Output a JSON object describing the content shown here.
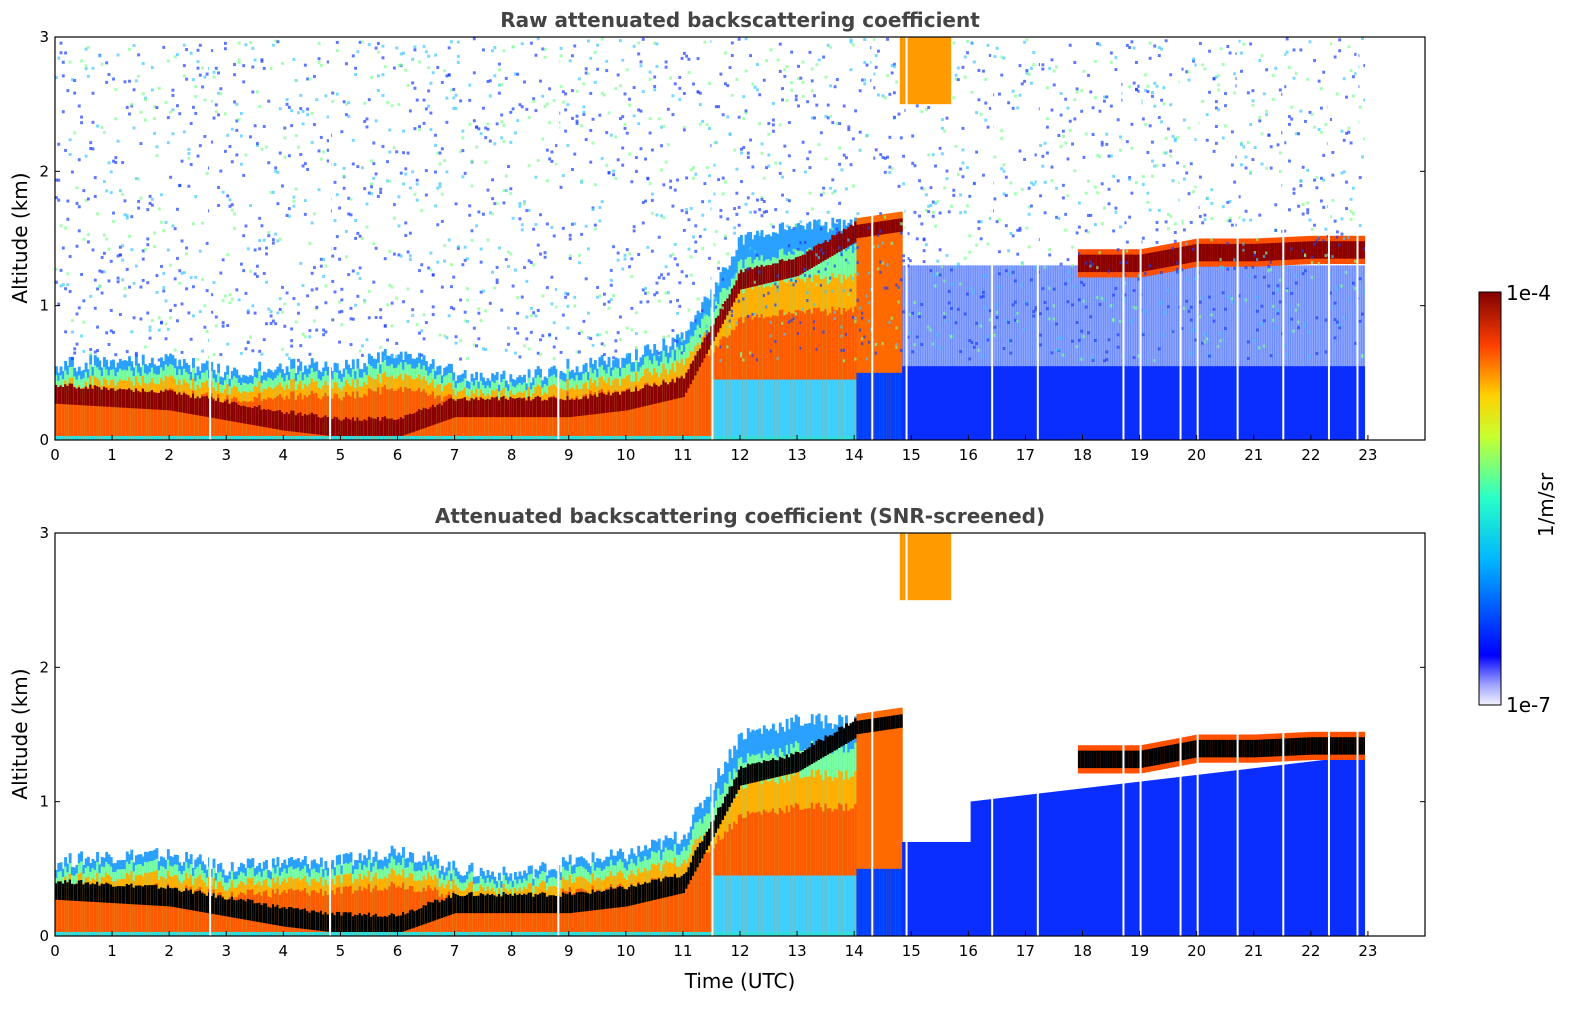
{
  "chart_data": [
    {
      "type": "heatmap",
      "title": "Raw attenuated backscattering coefficient",
      "xlabel": "",
      "ylabel": "Altitude (km)",
      "xlim": [
        0,
        24
      ],
      "ylim": [
        0,
        3
      ],
      "xticks": [
        "0",
        "1",
        "2",
        "3",
        "4",
        "5",
        "6",
        "7",
        "8",
        "9",
        "10",
        "11",
        "12",
        "13",
        "14",
        "15",
        "16",
        "17",
        "18",
        "19",
        "20",
        "21",
        "22",
        "23"
      ],
      "yticks": [
        "0",
        "1",
        "2",
        "3"
      ],
      "colorscale": "jet",
      "log_scale": true,
      "screened": false,
      "layers": {
        "surface_aerosol_top_km": [
          [
            0,
            0.55
          ],
          [
            1,
            0.6
          ],
          [
            2,
            0.6
          ],
          [
            3,
            0.5
          ],
          [
            4,
            0.55
          ],
          [
            5,
            0.55
          ],
          [
            6,
            0.65
          ],
          [
            7,
            0.5
          ],
          [
            8,
            0.45
          ],
          [
            9,
            0.55
          ],
          [
            10,
            0.6
          ],
          [
            11,
            0.75
          ],
          [
            12,
            1.5
          ],
          [
            13,
            1.6
          ],
          [
            14,
            1.6
          ],
          [
            14.8,
            1.65
          ]
        ],
        "strong_layer_km": [
          [
            0,
            0.35
          ],
          [
            2,
            0.3
          ],
          [
            4,
            0.15
          ],
          [
            5,
            0.1
          ],
          [
            6,
            0.1
          ],
          [
            7,
            0.25
          ],
          [
            8,
            0.25
          ],
          [
            9,
            0.25
          ],
          [
            10,
            0.3
          ],
          [
            11,
            0.4
          ],
          [
            12,
            1.2
          ],
          [
            13,
            1.3
          ],
          [
            14,
            1.55
          ],
          [
            14.8,
            1.6
          ],
          [
            17.9,
            1.3
          ],
          [
            19,
            1.3
          ],
          [
            20,
            1.38
          ],
          [
            21,
            1.38
          ],
          [
            22,
            1.4
          ],
          [
            23,
            1.4
          ]
        ],
        "elevated_cloud": {
          "t_start": 14.8,
          "t_end": 15.7,
          "base_km": 2.5,
          "top_km": 3
        }
      }
    },
    {
      "type": "heatmap",
      "title": "Attenuated backscattering coefficient (SNR-screened)",
      "xlabel": "Time (UTC)",
      "ylabel": "Altitude (km)",
      "xlim": [
        0,
        24
      ],
      "ylim": [
        0,
        3
      ],
      "xticks": [
        "0",
        "1",
        "2",
        "3",
        "4",
        "5",
        "6",
        "7",
        "8",
        "9",
        "10",
        "11",
        "12",
        "13",
        "14",
        "15",
        "16",
        "17",
        "18",
        "19",
        "20",
        "21",
        "22",
        "23"
      ],
      "yticks": [
        "0",
        "1",
        "2",
        "3"
      ],
      "colorscale": "jet",
      "log_scale": true,
      "screened": true
    }
  ],
  "colorbar": {
    "label": "1/m/sr",
    "max_label": "1e-4",
    "min_label": "1e-7",
    "range": [
      1e-07,
      0.0001
    ]
  },
  "colors": {
    "missing_data_gaps_utc": [
      2.7,
      4.8,
      8.8,
      11.5,
      14.3,
      14.9,
      16.4,
      17.2,
      18.7,
      19.0,
      19.7,
      20.0,
      20.7,
      21.5,
      22.3,
      22.8
    ]
  }
}
